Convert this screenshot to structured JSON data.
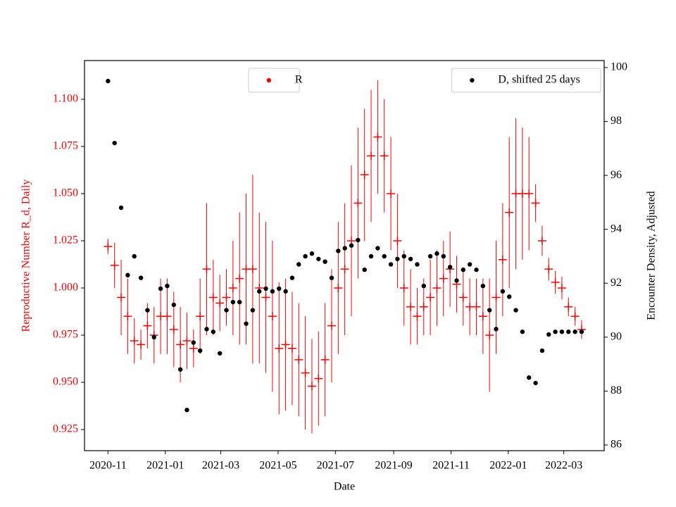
{
  "chart_data": {
    "type": "scatter",
    "xlabel": "Date",
    "ylabel": "Reproductive Number R_d, Daily",
    "y2label": "Encounter Density, Adjusted",
    "x": [
      "2020-11-01",
      "2020-11-08",
      "2020-11-15",
      "2020-11-22",
      "2020-11-29",
      "2020-12-06",
      "2020-12-13",
      "2020-12-20",
      "2020-12-27",
      "2021-01-03",
      "2021-01-10",
      "2021-01-17",
      "2021-01-24",
      "2021-01-31",
      "2021-02-07",
      "2021-02-14",
      "2021-02-21",
      "2021-02-28",
      "2021-03-07",
      "2021-03-14",
      "2021-03-21",
      "2021-03-28",
      "2021-04-04",
      "2021-04-11",
      "2021-04-18",
      "2021-04-25",
      "2021-05-02",
      "2021-05-09",
      "2021-05-16",
      "2021-05-23",
      "2021-05-30",
      "2021-06-06",
      "2021-06-13",
      "2021-06-20",
      "2021-06-27",
      "2021-07-04",
      "2021-07-11",
      "2021-07-18",
      "2021-07-25",
      "2021-08-01",
      "2021-08-08",
      "2021-08-15",
      "2021-08-22",
      "2021-08-29",
      "2021-09-05",
      "2021-09-12",
      "2021-09-19",
      "2021-09-26",
      "2021-10-03",
      "2021-10-10",
      "2021-10-17",
      "2021-10-24",
      "2021-10-31",
      "2021-11-07",
      "2021-11-14",
      "2021-11-21",
      "2021-11-28",
      "2021-12-05",
      "2021-12-12",
      "2021-12-19",
      "2021-12-26",
      "2022-01-02",
      "2022-01-09",
      "2022-01-16",
      "2022-01-23",
      "2022-01-30",
      "2022-02-06",
      "2022-02-13",
      "2022-02-20",
      "2022-02-27",
      "2022-03-06",
      "2022-03-13",
      "2022-03-20"
    ],
    "series": [
      {
        "name": "R",
        "color": "#ff0000",
        "axis": "y",
        "values": [
          1.022,
          1.012,
          0.995,
          0.985,
          0.972,
          0.97,
          0.98,
          0.975,
          0.985,
          0.985,
          0.978,
          0.97,
          0.972,
          0.968,
          0.985,
          1.01,
          0.995,
          0.992,
          0.995,
          1.0,
          1.005,
          1.01,
          1.01,
          1.0,
          0.995,
          0.985,
          0.968,
          0.97,
          0.968,
          0.962,
          0.955,
          0.948,
          0.952,
          0.962,
          0.98,
          1.0,
          1.01,
          1.025,
          1.045,
          1.06,
          1.07,
          1.08,
          1.07,
          1.05,
          1.025,
          1.0,
          0.99,
          0.985,
          0.99,
          0.995,
          1.0,
          1.005,
          1.01,
          1.002,
          0.995,
          0.99,
          0.99,
          0.985,
          0.975,
          0.995,
          1.015,
          1.04,
          1.05,
          1.05,
          1.05,
          1.045,
          1.025,
          1.01,
          1.003,
          1.0,
          0.99,
          0.985,
          0.978
        ],
        "error": [
          0.004,
          0.012,
          0.02,
          0.02,
          0.012,
          0.008,
          0.012,
          0.015,
          0.02,
          0.02,
          0.02,
          0.02,
          0.015,
          0.01,
          0.02,
          0.035,
          0.02,
          0.015,
          0.015,
          0.025,
          0.035,
          0.04,
          0.05,
          0.04,
          0.04,
          0.04,
          0.035,
          0.035,
          0.03,
          0.03,
          0.03,
          0.025,
          0.025,
          0.03,
          0.03,
          0.035,
          0.035,
          0.04,
          0.04,
          0.035,
          0.035,
          0.03,
          0.03,
          0.03,
          0.025,
          0.02,
          0.02,
          0.015,
          0.015,
          0.02,
          0.02,
          0.02,
          0.02,
          0.015,
          0.015,
          0.015,
          0.015,
          0.02,
          0.03,
          0.03,
          0.03,
          0.04,
          0.04,
          0.035,
          0.03,
          0.01,
          0.008,
          0.006,
          0.006,
          0.006,
          0.005,
          0.005,
          0.005
        ]
      },
      {
        "name": "D, shifted 25 days",
        "color": "#000000",
        "axis": "y2",
        "values": [
          99.5,
          97.2,
          94.8,
          92.3,
          93.0,
          92.2,
          91.0,
          90.0,
          91.8,
          91.9,
          91.2,
          88.8,
          87.3,
          89.8,
          89.5,
          90.3,
          90.2,
          89.4,
          91.0,
          91.3,
          91.3,
          90.5,
          91.0,
          91.7,
          91.8,
          91.7,
          91.8,
          91.7,
          92.2,
          92.7,
          93.0,
          93.1,
          92.9,
          92.8,
          92.2,
          93.2,
          93.3,
          93.4,
          93.6,
          92.5,
          93.0,
          93.3,
          93.0,
          92.7,
          92.9,
          93.0,
          92.9,
          92.7,
          91.9,
          93.0,
          93.1,
          93.0,
          92.6,
          92.1,
          92.5,
          92.7,
          92.5,
          91.9,
          91.0,
          90.3,
          91.7,
          91.5,
          91.0,
          90.2,
          88.5,
          88.3,
          89.5,
          90.1,
          90.2,
          90.2,
          90.2,
          90.2,
          90.2
        ]
      }
    ],
    "xlim": [
      "2020-10-07",
      "2022-04-13"
    ],
    "xticks": [
      {
        "value": "2020-11-01",
        "label": "2020-11"
      },
      {
        "value": "2021-01-01",
        "label": "2021-01"
      },
      {
        "value": "2021-03-01",
        "label": "2021-03"
      },
      {
        "value": "2021-05-01",
        "label": "2021-05"
      },
      {
        "value": "2021-07-01",
        "label": "2021-07"
      },
      {
        "value": "2021-09-01",
        "label": "2021-09"
      },
      {
        "value": "2021-11-01",
        "label": "2021-11"
      },
      {
        "value": "2022-01-01",
        "label": "2022-01"
      },
      {
        "value": "2022-03-01",
        "label": "2022-03"
      }
    ],
    "ylim": [
      0.9138,
      1.1205
    ],
    "yticks": [
      {
        "value": 0.925,
        "label": "0.925"
      },
      {
        "value": 0.95,
        "label": "0.950"
      },
      0.975,
      {
        "value": 1.0,
        "label": "1.000"
      },
      1.025,
      {
        "value": 1.05,
        "label": "1.050"
      },
      1.075,
      {
        "value": 1.1,
        "label": "1.100"
      }
    ],
    "y2lim": [
      85.79,
      100.26
    ],
    "y2ticks": [
      86,
      88,
      90,
      92,
      94,
      96,
      98,
      100
    ],
    "legend": "upper center",
    "legend2": "upper right",
    "grid": false
  }
}
